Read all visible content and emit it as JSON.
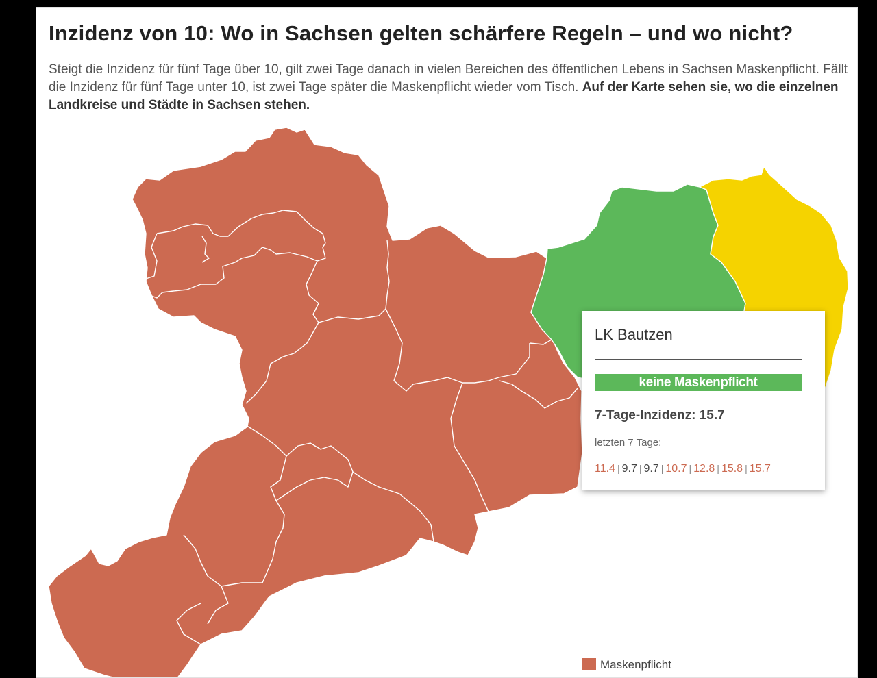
{
  "colors": {
    "maskenpflicht": "#cc6a51",
    "keine_maskenpflicht": "#5cb85a",
    "yellow_region": "#f5d300",
    "higher_value": "#cc6a51",
    "lower_value": "#444444"
  },
  "header": {
    "title": "Inzidenz von 10: Wo in Sachsen gelten schärfere Regeln – und wo nicht?",
    "intro": "Steigt die Inzidenz für fünf Tage über 10, gilt zwei Tage danach in vielen Bereichen des öffentlichen Lebens in Sachsen Maskenpflicht. Fällt die Inzidenz für fünf Tage unter 10, ist zwei Tage später die Maskenpflicht wieder vom Tisch. ",
    "intro_bold": "Auf der Karte sehen sie, wo die einzelnen Landkreise und Städte in Sachsen stehen."
  },
  "tooltip": {
    "name": "LK Bautzen",
    "status": "keine Maskenpflicht",
    "incidence_label": "7-Tage-Inzidenz: 15.7",
    "last_days_label": "letzten 7 Tage:",
    "last_values": [
      {
        "value": "11.4",
        "above": true
      },
      {
        "value": "9.7",
        "above": false
      },
      {
        "value": "9.7",
        "above": false
      },
      {
        "value": "10.7",
        "above": true
      },
      {
        "value": "12.8",
        "above": true
      },
      {
        "value": "15.8",
        "above": true
      },
      {
        "value": "15.7",
        "above": true
      }
    ]
  },
  "legend": {
    "items": [
      {
        "label": "Maskenpflicht",
        "color": "#cc6a51"
      }
    ]
  }
}
